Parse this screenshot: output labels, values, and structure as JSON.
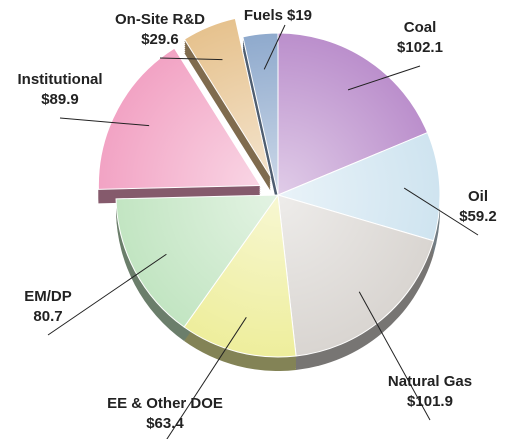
{
  "chart_data": {
    "type": "pie",
    "categories": [
      "Coal",
      "Oil",
      "Natural Gas",
      "EE & Other DOE",
      "EM/DP",
      "Institutional",
      "On-Site R&D",
      "Fuels"
    ],
    "values": [
      102.1,
      59.2,
      101.9,
      63.4,
      80.7,
      89.9,
      29.6,
      19
    ],
    "value_labels": [
      "$102.1",
      "$59.2",
      "$101.9",
      "$63.4",
      "80.7",
      "$89.9",
      "$29.6",
      "$19"
    ],
    "colors": [
      "#bb8fcc",
      "#cfe4f0",
      "#d9d5d1",
      "#eeee9c",
      "#c2e5c2",
      "#f2a3c4",
      "#e6c28e",
      "#8faacd"
    ],
    "explode": [
      5,
      6
    ]
  }
}
